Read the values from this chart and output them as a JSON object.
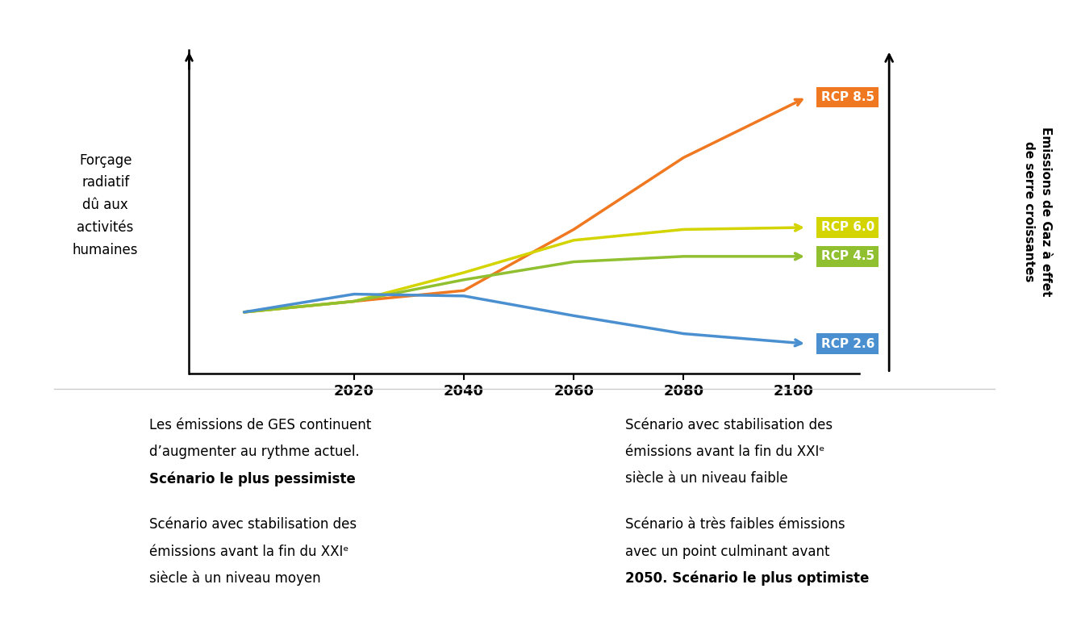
{
  "background_color": "#ffffff",
  "years": [
    2000,
    2020,
    2040,
    2060,
    2080,
    2100
  ],
  "rcp85": [
    3.2,
    3.5,
    3.8,
    5.5,
    7.5,
    9.0
  ],
  "rcp60": [
    3.2,
    3.5,
    4.3,
    5.2,
    5.5,
    5.55
  ],
  "rcp45": [
    3.2,
    3.5,
    4.1,
    4.6,
    4.75,
    4.75
  ],
  "rcp26": [
    3.2,
    3.7,
    3.65,
    3.1,
    2.6,
    2.35
  ],
  "color_rcp85": "#F07820",
  "color_rcp60": "#D4D400",
  "color_rcp45": "#90C030",
  "color_rcp26": "#4A90D0",
  "ylabel_left": "Forçage\nradiatif\ndû aux\nactivités\nhumaines",
  "ylabel_right": "Emissions de Gaz à effet\nde serre croissantes",
  "xticks": [
    2020,
    2040,
    2060,
    2080,
    2100
  ],
  "ylim": [
    1.5,
    10.5
  ],
  "xlim": [
    1990,
    2112
  ],
  "grid_color": "#cccccc",
  "label_rcp85": "RCP 8.5",
  "label_rcp60": "RCP 6.0",
  "label_rcp45": "RCP 4.5",
  "label_rcp26": "RCP 2.6",
  "legend_rcp85_line1": "Les émissions de GES continuent",
  "legend_rcp85_line2": "d’augmenter au rythme actuel.",
  "legend_rcp85_bold": "Scénario le plus pessimiste",
  "legend_rcp60_line1": "Scénario avec stabilisation des",
  "legend_rcp60_line2": "émissions avant la fin du XXIᵉ",
  "legend_rcp60_line3": "siècle à un niveau moyen",
  "legend_rcp45_line1": "Scénario avec stabilisation des",
  "legend_rcp45_line2": "émissions avant la fin du XXIᵉ",
  "legend_rcp45_line3": "siècle à un niveau faible",
  "legend_rcp26_line1": "Scénario à très faibles émissions",
  "legend_rcp26_line2": "avec un point culminant avant",
  "legend_rcp26_bold": "2050. Scénario le plus optimiste"
}
